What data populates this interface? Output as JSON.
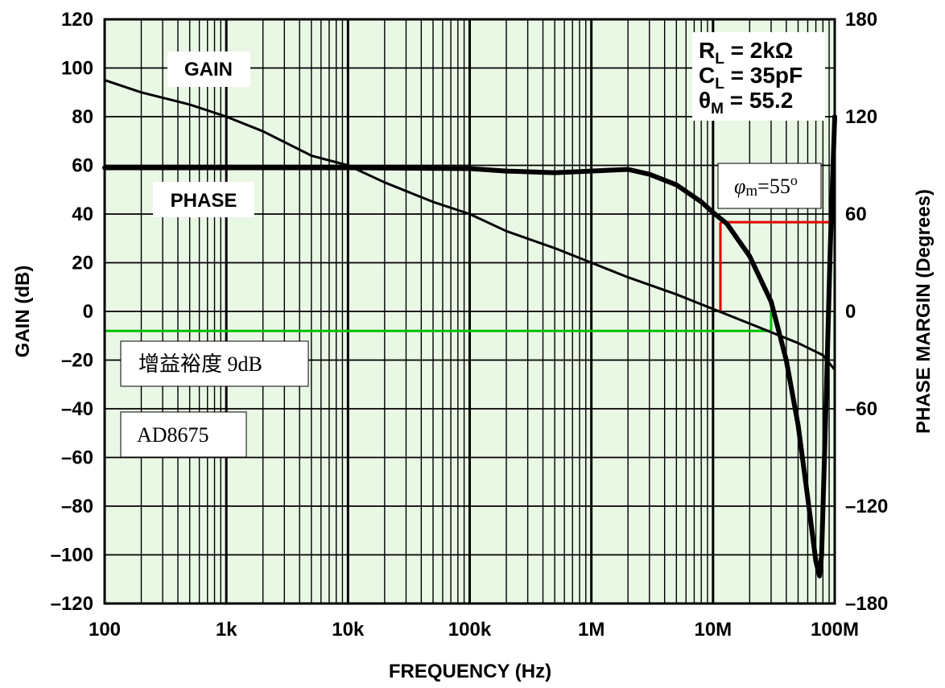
{
  "chart_data": {
    "type": "line",
    "title": "",
    "xlabel": "FREQUENCY (Hz)",
    "ylabel": "GAIN (dB)",
    "y2label": "PHASE MARGIN (Degrees)",
    "x_scale": "log",
    "xlim": [
      100,
      100000000
    ],
    "ylim": [
      -120,
      120
    ],
    "y2lim": [
      -180,
      180
    ],
    "grid": true,
    "background_color": "#e9f7e5",
    "x_ticks": [
      {
        "value": 100,
        "label": "100"
      },
      {
        "value": 1000,
        "label": "1k"
      },
      {
        "value": 10000,
        "label": "10k"
      },
      {
        "value": 100000,
        "label": "100k"
      },
      {
        "value": 1000000,
        "label": "1M"
      },
      {
        "value": 10000000,
        "label": "10M"
      },
      {
        "value": 100000000,
        "label": "100M"
      }
    ],
    "y_ticks": [
      {
        "value": 120,
        "label": "120"
      },
      {
        "value": 100,
        "label": "100"
      },
      {
        "value": 80,
        "label": "80"
      },
      {
        "value": 60,
        "label": "60"
      },
      {
        "value": 40,
        "label": "40"
      },
      {
        "value": 20,
        "label": "20"
      },
      {
        "value": 0,
        "label": "0"
      },
      {
        "value": -20,
        "label": "–20"
      },
      {
        "value": -40,
        "label": "–40"
      },
      {
        "value": -60,
        "label": "–60"
      },
      {
        "value": -80,
        "label": "–80"
      },
      {
        "value": -100,
        "label": "–100"
      },
      {
        "value": -120,
        "label": "–120"
      }
    ],
    "y2_ticks": [
      {
        "value": 180,
        "label": "180"
      },
      {
        "value": 120,
        "label": "120"
      },
      {
        "value": 60,
        "label": "60"
      },
      {
        "value": 0,
        "label": "0"
      },
      {
        "value": -60,
        "label": "–60"
      },
      {
        "value": -120,
        "label": "–120"
      },
      {
        "value": -180,
        "label": "–180"
      }
    ],
    "series": [
      {
        "name": "GAIN",
        "axis": "left",
        "color": "#000000",
        "points": [
          [
            100,
            95
          ],
          [
            200,
            90
          ],
          [
            500,
            85
          ],
          [
            1000,
            80
          ],
          [
            2000,
            74
          ],
          [
            5000,
            64
          ],
          [
            10000,
            60
          ],
          [
            20000,
            53
          ],
          [
            50000,
            45
          ],
          [
            100000,
            40
          ],
          [
            200000,
            33
          ],
          [
            500000,
            26
          ],
          [
            1000000,
            20
          ],
          [
            2000000,
            14
          ],
          [
            5000000,
            7
          ],
          [
            10000000,
            1
          ],
          [
            20000000,
            -5
          ],
          [
            50000000,
            -13
          ],
          [
            80000000,
            -18
          ],
          [
            100000000,
            -24
          ]
        ]
      },
      {
        "name": "PHASE",
        "axis": "right",
        "color": "#000000",
        "points": [
          [
            100,
            88.5
          ],
          [
            1000,
            88.5
          ],
          [
            10000,
            88.5
          ],
          [
            100000,
            88
          ],
          [
            200000,
            86.5
          ],
          [
            500000,
            85.5
          ],
          [
            1000000,
            86.5
          ],
          [
            2000000,
            87.5
          ],
          [
            3000000,
            84.5
          ],
          [
            5000000,
            78
          ],
          [
            8000000,
            67.5
          ],
          [
            10000000,
            61
          ],
          [
            13000000,
            54
          ],
          [
            20000000,
            34
          ],
          [
            30000000,
            6
          ],
          [
            40000000,
            -30
          ],
          [
            50000000,
            -70
          ],
          [
            60000000,
            -115
          ],
          [
            70000000,
            -154
          ],
          [
            75000000,
            -163
          ],
          [
            78000000,
            -150
          ],
          [
            85000000,
            -55
          ],
          [
            92000000,
            40
          ],
          [
            100000000,
            120
          ]
        ]
      }
    ],
    "annotations": {
      "gain_label": "GAIN",
      "phase_label": "PHASE",
      "params": {
        "rl_main": "R",
        "rl_sub": "L",
        "rl_rest": " = 2kΩ",
        "cl_main": "C",
        "cl_sub": "L",
        "cl_rest": " = 35pF",
        "theta_main": "θ",
        "theta_sub": "M",
        "theta_rest": " = 55.2"
      },
      "phase_margin_note": {
        "phi": "φ",
        "sub": "m",
        "value": "=55",
        "sup": "o"
      },
      "gain_margin_note": "增益裕度 9dB",
      "part_note": "AD8675"
    },
    "markers": {
      "phase_margin": {
        "freq": 11500000,
        "gain": 0,
        "phase": 55,
        "color": "#e00000"
      },
      "gain_margin": {
        "freq": 30000000,
        "gain": -8,
        "color": "#00c000"
      }
    }
  }
}
